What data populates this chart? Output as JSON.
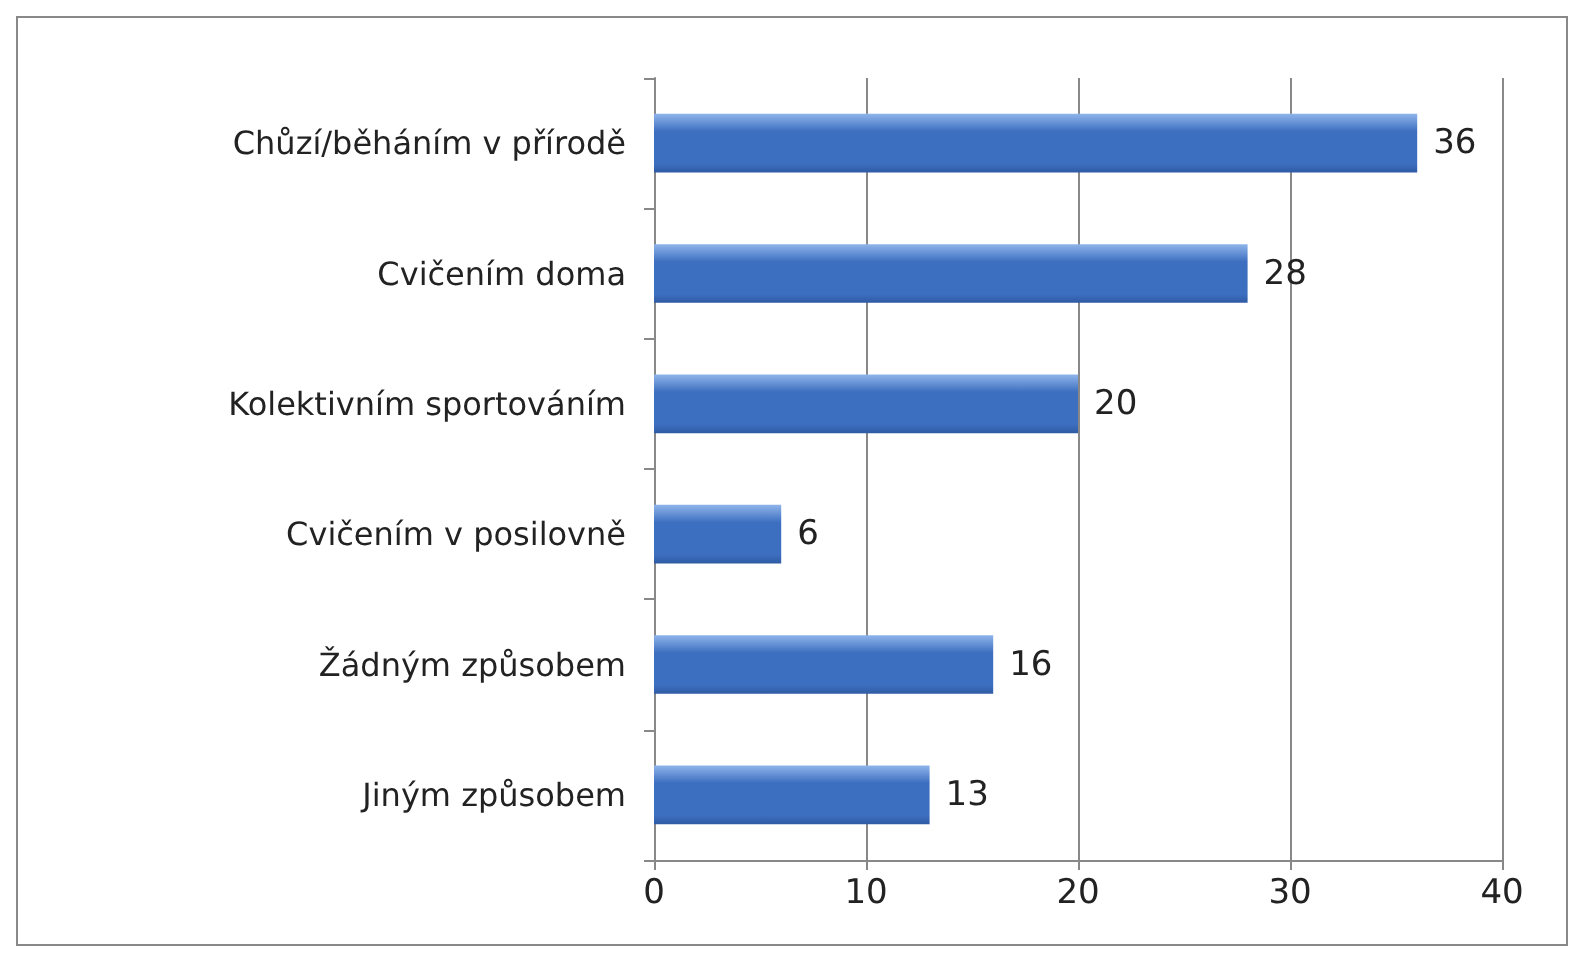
{
  "chart_data": {
    "type": "bar",
    "orientation": "horizontal",
    "categories": [
      "Chůzí/běháním v přírodě",
      "Cvičením doma",
      "Kolektivním sportováním",
      "Cvičením v posilovně",
      "Žádným způsobem",
      "Jiným způsobem"
    ],
    "values": [
      36,
      28,
      20,
      6,
      16,
      13
    ],
    "color": "#3d6fc0",
    "xlim": [
      0,
      40
    ],
    "xticks": [
      0,
      10,
      20,
      30,
      40
    ],
    "grid": "x",
    "data_labels": true
  }
}
